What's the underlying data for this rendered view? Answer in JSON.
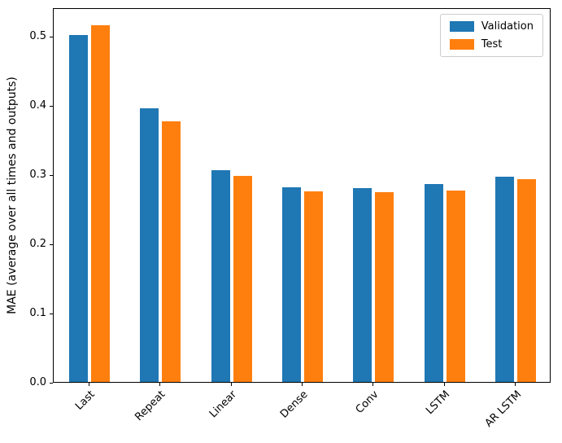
{
  "chart_data": {
    "type": "bar",
    "title": "",
    "xlabel": "",
    "ylabel": "MAE (average over all times and outputs)",
    "categories": [
      "Last",
      "Repeat",
      "Linear",
      "Dense",
      "Conv",
      "LSTM",
      "AR LSTM"
    ],
    "series": [
      {
        "name": "Validation",
        "color": "#1f77b4",
        "values": [
          0.501,
          0.396,
          0.306,
          0.281,
          0.28,
          0.286,
          0.297
        ]
      },
      {
        "name": "Test",
        "color": "#ff7f0e",
        "values": [
          0.516,
          0.377,
          0.298,
          0.276,
          0.274,
          0.277,
          0.293
        ]
      }
    ],
    "ylim": [
      0,
      0.5415
    ],
    "yticks": [
      0.0,
      0.1,
      0.2,
      0.3,
      0.4,
      0.5
    ],
    "ytick_format": "1dp",
    "xtick_rotation_deg": 45,
    "grid": false,
    "legend_position": "upper right"
  }
}
